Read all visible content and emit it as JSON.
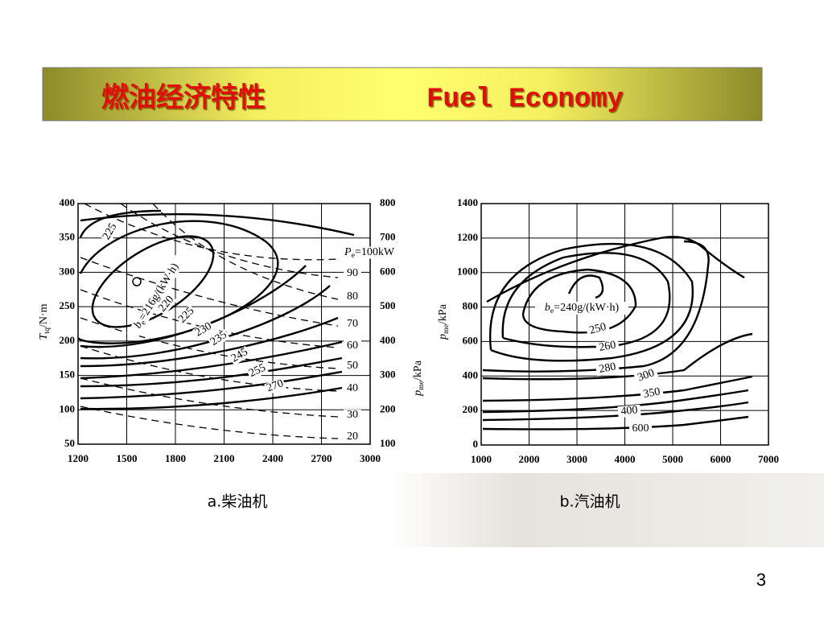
{
  "header": {
    "title_cn": "燃油经济特性",
    "title_en": "Fuel Economy"
  },
  "figures": [
    {
      "y_ticks": [
        400,
        350,
        300,
        250,
        200,
        150,
        100,
        50
      ],
      "y2_ticks": [
        800,
        700,
        600,
        500,
        400,
        300,
        200,
        100
      ],
      "x_ticks": [
        1200,
        1500,
        1800,
        2100,
        2400,
        2700,
        3000
      ],
      "y_label": {
        "symbol": "T",
        "subscript": "tq",
        "unit": "/N·m"
      },
      "y2_label": {
        "symbol": "p",
        "subscript": "me",
        "unit": "/kPa"
      },
      "efficiency_label": {
        "symbol": "b",
        "subscript": "e",
        "text": "=216g/(kW·h)"
      },
      "contour_labels": [
        "225",
        "220",
        "225",
        "230",
        "235",
        "245",
        "255",
        "270"
      ],
      "power_label": {
        "symbol": "P",
        "subscript": "e",
        "text": "=100kW"
      },
      "power_labels": [
        "90",
        "80",
        "70",
        "60",
        "50",
        "40",
        "30",
        "20"
      ],
      "caption": "a.柴油机"
    },
    {
      "y_ticks": [
        1400,
        1200,
        1000,
        800,
        600,
        400,
        200,
        0
      ],
      "x_ticks": [
        1000,
        2000,
        3000,
        4000,
        5000,
        6000,
        7000
      ],
      "y_label": {
        "symbol": "p",
        "subscript": "me",
        "unit": "/kPa"
      },
      "efficiency_label": {
        "symbol": "b",
        "subscript": "e",
        "text": "=240g/(kW·h)"
      },
      "contour_labels": [
        "250",
        "260",
        "280",
        "300",
        "350",
        "400",
        "600"
      ],
      "caption": "b.汽油机"
    }
  ],
  "page_number": "3"
}
